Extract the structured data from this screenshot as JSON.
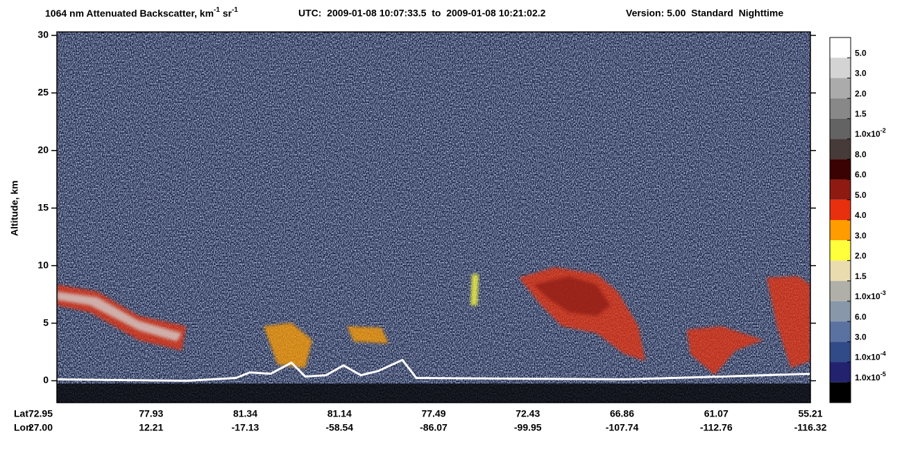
{
  "chart_data": {
    "type": "heatmap",
    "title_runs": [
      {
        "text": "1064 nm Attenuated Backscatter, km",
        "sup": false
      },
      {
        "text": "-1",
        "sup": true
      },
      {
        "text": " sr",
        "sup": false
      },
      {
        "text": "-1",
        "sup": true
      }
    ],
    "utc": "UTC:  2009-01-08 10:07:33.5  to  2009-01-08 10:21:02.2",
    "version": "Version: 5.00  Standard  Nighttime",
    "ylabel": "Altitude, km",
    "ylim": [
      -1.9,
      30.3
    ],
    "yticks": [
      0,
      5,
      10,
      15,
      20,
      25,
      30
    ],
    "x_rows": [
      {
        "name": "Lat",
        "labels": [
          "72.95",
          "77.93",
          "81.34",
          "81.14",
          "77.49",
          "72.43",
          "66.86",
          "61.07",
          "55.21"
        ]
      },
      {
        "name": "Lon",
        "labels": [
          "27.00",
          "12.21",
          "-17.13",
          "-58.54",
          "-86.07",
          "-99.95",
          "-107.74",
          "-112.76",
          "-116.32"
        ]
      }
    ],
    "colorbar": {
      "colors": [
        "#ffffff",
        "#d4d4d4",
        "#ababab",
        "#888888",
        "#636363",
        "#463b38",
        "#3a0202",
        "#8e1a12",
        "#e8300e",
        "#ff9c00",
        "#ffff3c",
        "#ebdcb0",
        "#b0b0a8",
        "#8898aa",
        "#5a72a0",
        "#314a88",
        "#22226e",
        "#000000"
      ],
      "labels": [
        "5.0",
        "3.0",
        "2.0",
        "1.5",
        {
          "text": "1.0x10",
          "sup": "-2"
        },
        "8.0",
        "6.0",
        "5.0",
        "4.0",
        "3.0",
        "2.0",
        "1.5",
        {
          "text": "1.0x10",
          "sup": "-3"
        },
        "6.0",
        "3.0",
        {
          "text": "1.0x10",
          "sup": "-4"
        },
        {
          "text": "1.0x10",
          "sup": "-5"
        }
      ]
    }
  }
}
